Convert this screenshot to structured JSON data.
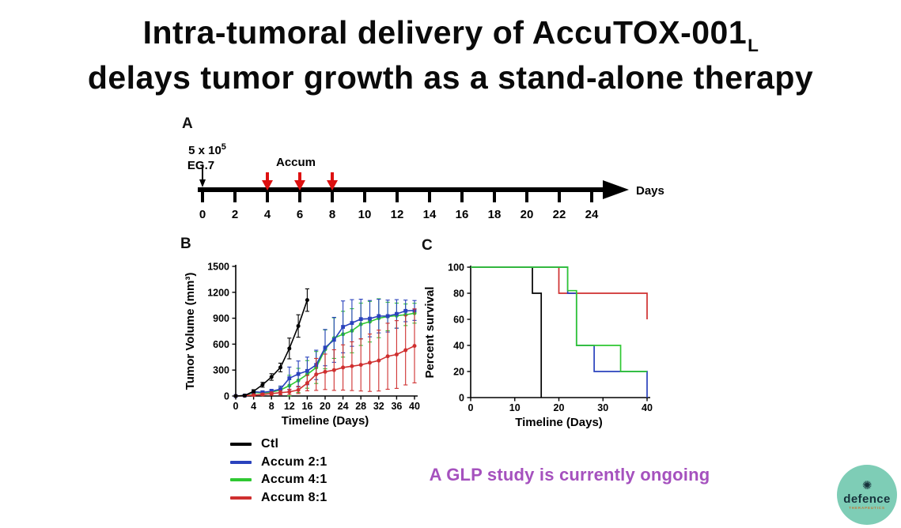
{
  "slide": {
    "title_line1": "Intra-tumoral delivery of AccuTOX-001",
    "title_line1_subscript": "L",
    "title_line2": "delays tumor growth as a stand-alone therapy"
  },
  "panel_a": {
    "label": "A",
    "inoculation": {
      "base": "5 x 10",
      "sup": "5",
      "cell_line": "EG.7"
    },
    "treatment_label": "Accum",
    "treatment_days": [
      4,
      6,
      8
    ],
    "treatment_arrow_color": "#dd1111",
    "tick_days": [
      0,
      2,
      4,
      6,
      8,
      10,
      12,
      14,
      16,
      18,
      20,
      22,
      24
    ],
    "axis_end_label": "Days"
  },
  "chart_data": [
    {
      "id": "tumor-volume",
      "panel_label": "B",
      "type": "line",
      "xlabel": "Timeline (Days)",
      "ylabel": "Tumor Volume (mm³)",
      "xlim": [
        0,
        40
      ],
      "ylim": [
        0,
        1500
      ],
      "xticks": [
        0,
        4,
        8,
        12,
        16,
        20,
        24,
        28,
        32,
        36,
        40
      ],
      "yticks": [
        0,
        300,
        600,
        900,
        1200,
        1500
      ],
      "series": [
        {
          "name": "Accum 4:1",
          "color": "#2fc832",
          "marker": "circle",
          "x": [
            0,
            2,
            4,
            6,
            8,
            10,
            12,
            14,
            16,
            18,
            20,
            22,
            24,
            26,
            28,
            30,
            32,
            34,
            36,
            38,
            40
          ],
          "y": [
            0,
            5,
            40,
            35,
            45,
            70,
            120,
            180,
            250,
            330,
            540,
            670,
            715,
            755,
            830,
            860,
            900,
            920,
            930,
            940,
            958
          ],
          "err": [
            0,
            6,
            16,
            15,
            20,
            30,
            120,
            140,
            160,
            185,
            225,
            235,
            265,
            255,
            245,
            235,
            225,
            165,
            145,
            125,
            115
          ]
        },
        {
          "name": "Accum 2:1",
          "color": "#2a42bd",
          "marker": "square",
          "x": [
            0,
            2,
            4,
            6,
            8,
            10,
            12,
            14,
            16,
            18,
            20,
            22,
            24,
            26,
            28,
            30,
            32,
            34,
            36,
            38,
            40
          ],
          "y": [
            0,
            5,
            50,
            42,
            55,
            80,
            205,
            255,
            290,
            360,
            560,
            650,
            800,
            845,
            890,
            895,
            925,
            925,
            950,
            985,
            990
          ],
          "err": [
            0,
            6,
            20,
            18,
            22,
            35,
            130,
            150,
            160,
            170,
            210,
            260,
            300,
            270,
            230,
            210,
            195,
            185,
            165,
            125,
            115
          ]
        },
        {
          "name": "Accum 8:1",
          "color": "#cf2f2f",
          "marker": "circle",
          "x": [
            0,
            2,
            4,
            6,
            8,
            10,
            12,
            14,
            16,
            18,
            20,
            22,
            24,
            26,
            28,
            30,
            32,
            34,
            36,
            38,
            40
          ],
          "y": [
            0,
            4,
            10,
            18,
            28,
            38,
            48,
            70,
            150,
            250,
            280,
            300,
            330,
            345,
            360,
            385,
            410,
            460,
            480,
            530,
            580
          ],
          "err": [
            0,
            5,
            10,
            14,
            20,
            24,
            30,
            42,
            90,
            185,
            205,
            235,
            262,
            282,
            302,
            332,
            352,
            382,
            392,
            402,
            428
          ]
        },
        {
          "name": "Ctl",
          "color": "#000000",
          "marker": "circle",
          "x": [
            0,
            2,
            4,
            6,
            8,
            10,
            12,
            14,
            16
          ],
          "y": [
            0,
            5,
            55,
            130,
            220,
            330,
            550,
            810,
            1110
          ],
          "err": [
            0,
            8,
            18,
            28,
            38,
            50,
            120,
            130,
            130
          ]
        }
      ]
    },
    {
      "id": "survival",
      "panel_label": "C",
      "type": "step",
      "xlabel": "Timeline (Days)",
      "ylabel": "Percent survival",
      "xlim": [
        0,
        40
      ],
      "ylim": [
        0,
        100
      ],
      "xticks": [
        0,
        10,
        20,
        30,
        40
      ],
      "yticks": [
        0,
        20,
        40,
        60,
        80,
        100
      ],
      "series": [
        {
          "name": "Ctl",
          "color": "#000000",
          "points": [
            [
              0,
              100
            ],
            [
              14,
              100
            ],
            [
              14,
              80
            ],
            [
              16,
              80
            ],
            [
              16,
              0
            ]
          ]
        },
        {
          "name": "Accum 8:1",
          "color": "#cf2f2f",
          "points": [
            [
              0,
              100
            ],
            [
              20,
              100
            ],
            [
              20,
              80
            ],
            [
              40,
              80
            ],
            [
              40,
              60
            ]
          ]
        },
        {
          "name": "Accum 2:1",
          "color": "#2a42bd",
          "points": [
            [
              0,
              100
            ],
            [
              22,
              100
            ],
            [
              22,
              80
            ],
            [
              24,
              80
            ],
            [
              24,
              40
            ],
            [
              28,
              40
            ],
            [
              28,
              20
            ],
            [
              40,
              20
            ],
            [
              40,
              0
            ]
          ]
        },
        {
          "name": "Accum 4:1",
          "color": "#2fc832",
          "points": [
            [
              0,
              100
            ],
            [
              22,
              100
            ],
            [
              22,
              82
            ],
            [
              24,
              82
            ],
            [
              24,
              40
            ],
            [
              34,
              40
            ],
            [
              34,
              20
            ],
            [
              40,
              20
            ]
          ]
        }
      ]
    }
  ],
  "legend": {
    "items": [
      {
        "label": "Ctl",
        "color": "#000000"
      },
      {
        "label": "Accum 2:1",
        "color": "#2a42bd"
      },
      {
        "label": "Accum 4:1",
        "color": "#2fc832"
      },
      {
        "label": "Accum 8:1",
        "color": "#cf2f2f"
      }
    ]
  },
  "footer": {
    "note": "A GLP study is currently ongoing",
    "note_color": "#a551be"
  },
  "logo": {
    "icon": "✺",
    "brand": "defence",
    "subtext": "THERAPEUTICS",
    "circle_color": "#7ecdb6",
    "text_color": "#16323c",
    "subtext_color": "#c0793c"
  }
}
